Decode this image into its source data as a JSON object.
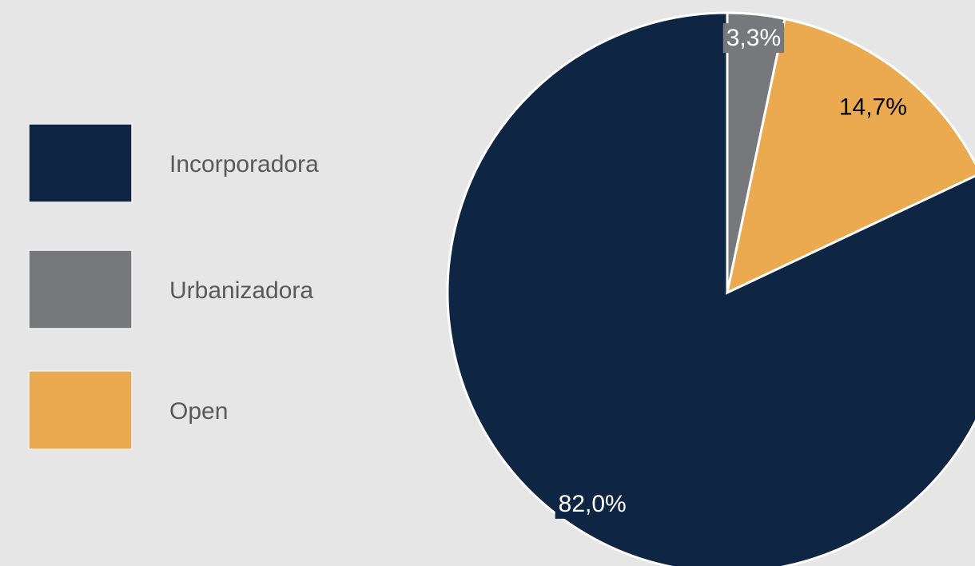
{
  "chart_data": {
    "type": "pie",
    "categories": [
      "Incorporadora",
      "Urbanizadora",
      "Open"
    ],
    "values": [
      82.0,
      3.3,
      14.7
    ],
    "value_labels": [
      "82,0%",
      "3,3%",
      "14,7%"
    ],
    "colors": [
      "#0f2544",
      "#76787c",
      "#ebaa50"
    ],
    "legend": "left"
  }
}
